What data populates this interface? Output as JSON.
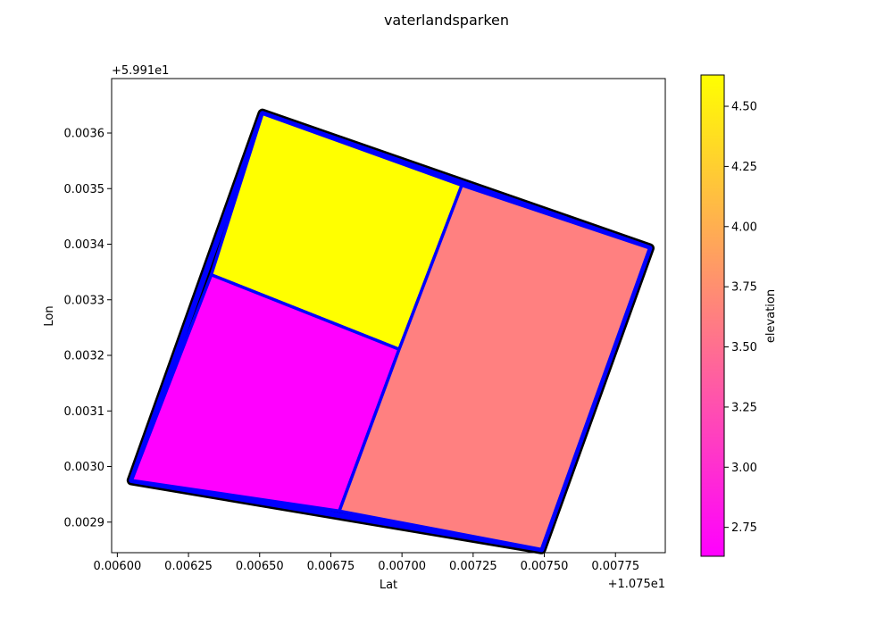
{
  "chart_data": {
    "type": "polygon-map",
    "title": "vaterlandsparken",
    "xlabel": "Lat",
    "ylabel": "Lon",
    "x_offset_label": "+1.075e1",
    "y_offset_label": "+5.991e1",
    "xlim": [
      0.00598,
      0.007925
    ],
    "ylim": [
      0.002845,
      0.003698
    ],
    "x_ticks": [
      0.006,
      0.00625,
      0.0065,
      0.00675,
      0.007,
      0.00725,
      0.0075,
      0.00775
    ],
    "x_tick_labels": [
      "0.00600",
      "0.00625",
      "0.00650",
      "0.00675",
      "0.00700",
      "0.00725",
      "0.00750",
      "0.00775"
    ],
    "y_ticks": [
      0.0029,
      0.003,
      0.0031,
      0.0032,
      0.0033,
      0.0034,
      0.0035,
      0.0036
    ],
    "y_tick_labels": [
      "0.0029",
      "0.0030",
      "0.0031",
      "0.0032",
      "0.0033",
      "0.0034",
      "0.0035",
      "0.0036"
    ],
    "colorbar": {
      "label": "elevation",
      "min": 2.63,
      "max": 4.63,
      "ticks": [
        2.75,
        3.0,
        3.25,
        3.5,
        3.75,
        4.0,
        4.25,
        4.5
      ],
      "tick_labels": [
        "2.75",
        "3.00",
        "3.25",
        "3.50",
        "3.75",
        "4.00",
        "4.25",
        "4.50"
      ],
      "colormap": [
        "#ff00ff",
        "#ffff00"
      ]
    },
    "outline": {
      "points": [
        [
          0.00651,
          0.003635
        ],
        [
          0.00787,
          0.003393
        ],
        [
          0.00749,
          0.002851
        ],
        [
          0.00605,
          0.002975
        ]
      ],
      "outer_color": "#000000",
      "inner_color": "#0000ff"
    },
    "polygons": [
      {
        "elevation": 4.63,
        "fill": "#ffff00",
        "points": [
          [
            0.00651,
            0.003635
          ],
          [
            0.00721,
            0.003506
          ],
          [
            0.00699,
            0.003211
          ],
          [
            0.00633,
            0.003345
          ]
        ]
      },
      {
        "elevation": 2.63,
        "fill": "#ff00ff",
        "points": [
          [
            0.00633,
            0.003345
          ],
          [
            0.00699,
            0.003211
          ],
          [
            0.00678,
            0.00292
          ],
          [
            0.00605,
            0.002975
          ]
        ]
      },
      {
        "elevation": 3.63,
        "fill": "#ff8080",
        "points": [
          [
            0.00721,
            0.003506
          ],
          [
            0.00787,
            0.003393
          ],
          [
            0.00749,
            0.002851
          ],
          [
            0.00678,
            0.00292
          ],
          [
            0.00699,
            0.003211
          ]
        ]
      }
    ],
    "edge_color": "#0000ff"
  }
}
